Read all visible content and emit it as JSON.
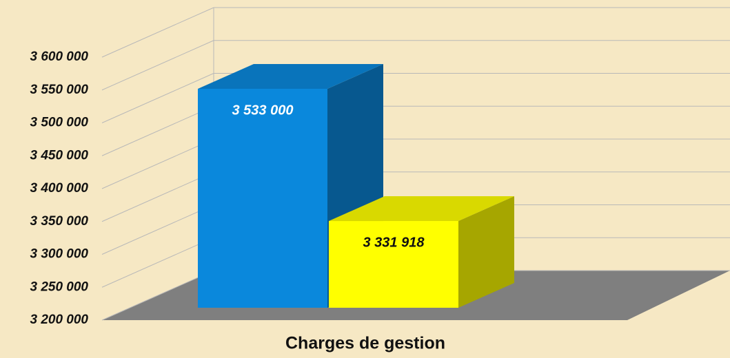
{
  "chart_data": {
    "type": "bar3d",
    "categories": [
      "Charges de gestion"
    ],
    "series": [
      {
        "color": "#0a88dc",
        "values": [
          3533000
        ],
        "value_labels": [
          "3 533 000"
        ]
      },
      {
        "color": "#ffff00",
        "values": [
          3331918
        ],
        "value_labels": [
          "3 331 918"
        ]
      }
    ],
    "ylim": [
      3200000,
      3600000
    ],
    "yticks": [
      {
        "value": 3200000,
        "label": "3 200 000"
      },
      {
        "value": 3250000,
        "label": "3 250 000"
      },
      {
        "value": 3300000,
        "label": "3 300 000"
      },
      {
        "value": 3350000,
        "label": "3 350 000"
      },
      {
        "value": 3400000,
        "label": "3 400 000"
      },
      {
        "value": 3450000,
        "label": "3 450 000"
      },
      {
        "value": 3500000,
        "label": "3 500 000"
      },
      {
        "value": 3550000,
        "label": "3 550 000"
      },
      {
        "value": 3600000,
        "label": "3 600 000"
      }
    ],
    "grid": true
  }
}
